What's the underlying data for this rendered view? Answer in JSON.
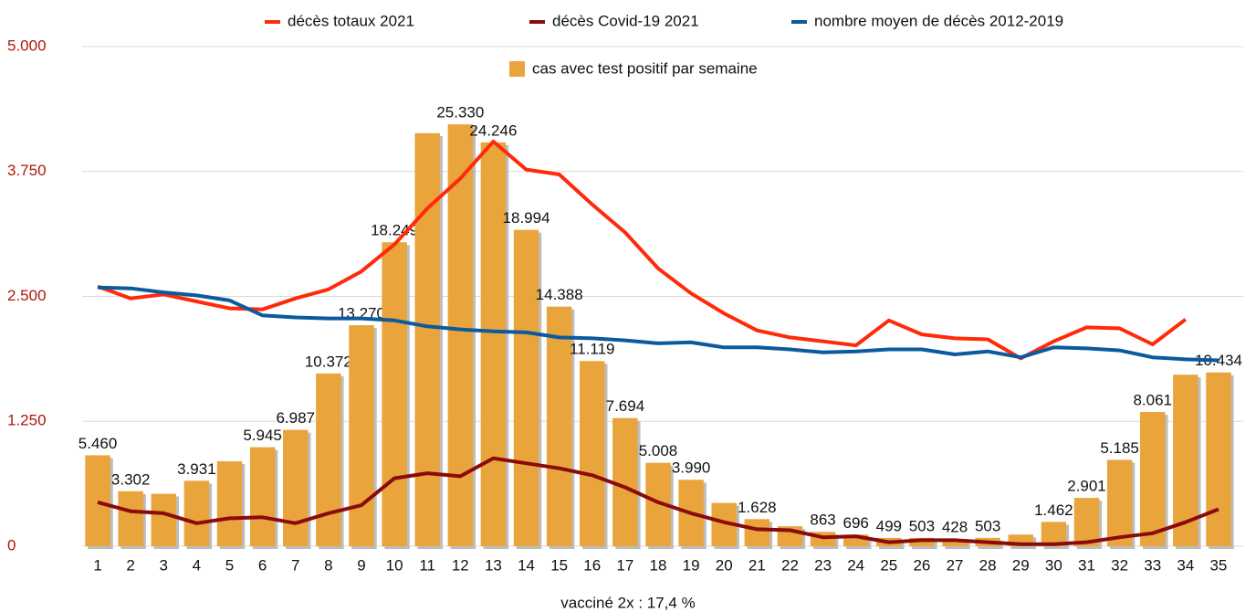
{
  "chart_data": {
    "type": "bar",
    "xlabel": "vacciné 2x : 17,4 %",
    "categories": [
      "1",
      "2",
      "3",
      "4",
      "5",
      "6",
      "7",
      "8",
      "9",
      "10",
      "11",
      "12",
      "13",
      "14",
      "15",
      "16",
      "17",
      "18",
      "19",
      "20",
      "21",
      "22",
      "23",
      "24",
      "25",
      "26",
      "27",
      "28",
      "29",
      "30",
      "31",
      "32",
      "33",
      "34",
      "35"
    ],
    "ylim": [
      0,
      5000
    ],
    "yticks": [
      0,
      {
        "value": 1250,
        "label": "1.250"
      },
      {
        "value": 2500,
        "label": "2.500"
      },
      {
        "value": 3750,
        "label": "3.750"
      },
      {
        "value": 5000,
        "label": "5.000"
      }
    ],
    "y2lim": [
      0,
      30000
    ],
    "grid": true,
    "series": [
      {
        "name": "décès totaux 2021",
        "type": "line",
        "color": "#ff2a0a",
        "values": [
          2600,
          2480,
          2520,
          2450,
          2380,
          2370,
          2480,
          2570,
          2750,
          3020,
          3380,
          3680,
          4050,
          3770,
          3720,
          3420,
          3140,
          2780,
          2530,
          2330,
          2160,
          2090,
          2050,
          2010,
          2260,
          2120,
          2080,
          2070,
          1880,
          2050,
          2190,
          2180,
          2020,
          2270,
          null
        ]
      },
      {
        "name": "décès Covid-19 2021",
        "type": "line",
        "color": "#8b0a0a",
        "values": [
          440,
          350,
          330,
          230,
          280,
          290,
          230,
          330,
          410,
          680,
          730,
          700,
          880,
          830,
          780,
          710,
          590,
          440,
          330,
          240,
          170,
          160,
          90,
          100,
          40,
          60,
          60,
          40,
          20,
          20,
          40,
          90,
          130,
          240,
          370
        ]
      },
      {
        "name": "nombre moyen de décès 2012-2019",
        "type": "line",
        "color": "#0b5a9e",
        "values": [
          2590,
          2580,
          2540,
          2510,
          2460,
          2310,
          2290,
          2280,
          2280,
          2260,
          2200,
          2170,
          2150,
          2140,
          2090,
          2080,
          2060,
          2030,
          2040,
          1990,
          1990,
          1970,
          1940,
          1950,
          1970,
          1970,
          1920,
          1950,
          1890,
          1990,
          1980,
          1960,
          1890,
          1870,
          1860
        ]
      },
      {
        "name": "cas avec test positif par semaine",
        "type": "bar",
        "axis": "y2",
        "color": "#e9a43c",
        "values": [
          5460,
          3302,
          3150,
          3931,
          5100,
          5945,
          6987,
          10372,
          13270,
          18249,
          24800,
          25330,
          24246,
          18994,
          14388,
          11119,
          7694,
          5008,
          3990,
          2600,
          1628,
          1200,
          863,
          696,
          499,
          503,
          428,
          503,
          700,
          1462,
          2901,
          5185,
          8061,
          10300,
          10434
        ],
        "value_labels": [
          "5.460",
          "3.302",
          null,
          "3.931",
          null,
          "5.945",
          "6.987",
          "10.372",
          "13.270",
          "18.249",
          null,
          "25.330",
          "24.246",
          "18.994",
          "14.388",
          "11.119",
          "7.694",
          "5.008",
          "3.990",
          null,
          "1.628",
          null,
          "863",
          "696",
          "499",
          "503",
          "428",
          "503",
          null,
          "1.462",
          "2.901",
          "5.185",
          "8.061",
          null,
          "10.434"
        ]
      }
    ]
  }
}
